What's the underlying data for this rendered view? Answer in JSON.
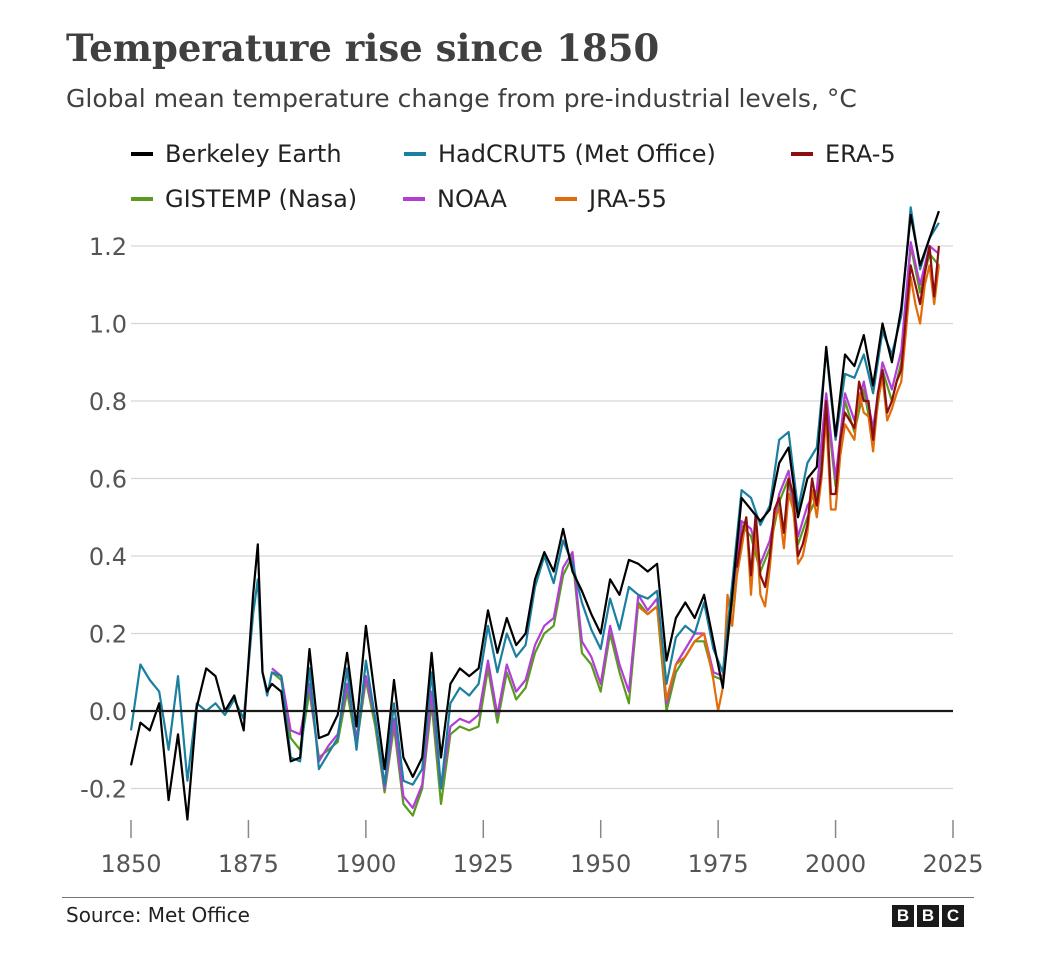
{
  "title": "Temperature rise since 1850",
  "subtitle": "Global mean temperature change from pre-industrial levels, °C",
  "source": "Source: Met Office",
  "logo": [
    "B",
    "B",
    "C"
  ],
  "chart_data": {
    "type": "line",
    "title": "Temperature rise since 1850",
    "subtitle": "Global mean temperature change from pre-industrial levels, °C",
    "xlabel": "",
    "ylabel": "",
    "xlim": [
      1850,
      2025
    ],
    "ylim": [
      -0.3,
      1.3
    ],
    "xticks": [
      1850,
      1875,
      1900,
      1925,
      1950,
      1975,
      2000,
      2025
    ],
    "xtick_labels": [
      "1850",
      "1875",
      "1900",
      "1925",
      "1950",
      "1975",
      "2000",
      "2025"
    ],
    "yticks": [
      -0.2,
      0.0,
      0.2,
      0.4,
      0.6,
      0.8,
      1.0,
      1.2
    ],
    "ytick_labels": [
      "-0.2",
      "0.0",
      "0.2",
      "0.4",
      "0.6",
      "0.8",
      "1.0",
      "1.2"
    ],
    "grid": true,
    "legend_position": "top",
    "series": [
      {
        "name": "Berkeley Earth",
        "color": "#000000",
        "x": [
          1850,
          1852,
          1854,
          1856,
          1858,
          1860,
          1862,
          1864,
          1866,
          1868,
          1870,
          1872,
          1874,
          1876,
          1877,
          1878,
          1879,
          1880,
          1882,
          1884,
          1886,
          1888,
          1890,
          1892,
          1894,
          1896,
          1898,
          1900,
          1902,
          1904,
          1906,
          1908,
          1910,
          1912,
          1914,
          1916,
          1918,
          1920,
          1922,
          1924,
          1926,
          1928,
          1930,
          1932,
          1934,
          1936,
          1938,
          1940,
          1942,
          1944,
          1946,
          1948,
          1950,
          1952,
          1954,
          1956,
          1958,
          1960,
          1962,
          1964,
          1966,
          1968,
          1970,
          1972,
          1974,
          1976,
          1978,
          1980,
          1982,
          1984,
          1986,
          1988,
          1990,
          1992,
          1994,
          1996,
          1998,
          2000,
          2002,
          2004,
          2006,
          2008,
          2010,
          2012,
          2014,
          2016,
          2018,
          2020,
          2022
        ],
        "values": [
          -0.14,
          -0.03,
          -0.05,
          0.02,
          -0.23,
          -0.06,
          -0.28,
          0.01,
          0.11,
          0.09,
          0.0,
          0.04,
          -0.05,
          0.3,
          0.43,
          0.1,
          0.05,
          0.07,
          0.05,
          -0.13,
          -0.12,
          0.16,
          -0.07,
          -0.06,
          -0.01,
          0.15,
          -0.04,
          0.22,
          0.03,
          -0.15,
          0.08,
          -0.12,
          -0.17,
          -0.12,
          0.15,
          -0.12,
          0.07,
          0.11,
          0.09,
          0.11,
          0.26,
          0.15,
          0.24,
          0.17,
          0.2,
          0.34,
          0.41,
          0.36,
          0.47,
          0.36,
          0.31,
          0.25,
          0.2,
          0.34,
          0.3,
          0.39,
          0.38,
          0.36,
          0.38,
          0.13,
          0.24,
          0.28,
          0.24,
          0.3,
          0.18,
          0.06,
          0.3,
          0.55,
          0.52,
          0.49,
          0.52,
          0.64,
          0.68,
          0.5,
          0.6,
          0.63,
          0.94,
          0.71,
          0.92,
          0.89,
          0.97,
          0.84,
          1.0,
          0.9,
          1.04,
          1.28,
          1.15,
          1.22,
          1.29
        ]
      },
      {
        "name": "HadCRUT5 (Met Office)",
        "color": "#1b7fa0",
        "x": [
          1850,
          1852,
          1854,
          1856,
          1858,
          1860,
          1862,
          1864,
          1866,
          1868,
          1870,
          1872,
          1874,
          1876,
          1877,
          1878,
          1879,
          1880,
          1882,
          1884,
          1886,
          1888,
          1890,
          1892,
          1894,
          1896,
          1898,
          1900,
          1902,
          1904,
          1906,
          1908,
          1910,
          1912,
          1914,
          1916,
          1918,
          1920,
          1922,
          1924,
          1926,
          1928,
          1930,
          1932,
          1934,
          1936,
          1938,
          1940,
          1942,
          1944,
          1946,
          1948,
          1950,
          1952,
          1954,
          1956,
          1958,
          1960,
          1962,
          1964,
          1966,
          1968,
          1970,
          1972,
          1974,
          1976,
          1978,
          1980,
          1982,
          1984,
          1986,
          1988,
          1990,
          1992,
          1994,
          1996,
          1998,
          2000,
          2002,
          2004,
          2006,
          2008,
          2010,
          2012,
          2014,
          2016,
          2018,
          2020,
          2022
        ],
        "values": [
          -0.05,
          0.12,
          0.08,
          0.05,
          -0.1,
          0.09,
          -0.18,
          0.02,
          0.0,
          0.02,
          -0.01,
          0.03,
          -0.02,
          0.25,
          0.34,
          0.1,
          0.04,
          0.1,
          0.09,
          -0.12,
          -0.13,
          0.11,
          -0.15,
          -0.11,
          -0.07,
          0.11,
          -0.1,
          0.13,
          -0.02,
          -0.19,
          0.02,
          -0.18,
          -0.19,
          -0.15,
          0.1,
          -0.2,
          0.02,
          0.06,
          0.04,
          0.07,
          0.22,
          0.1,
          0.2,
          0.14,
          0.17,
          0.32,
          0.4,
          0.33,
          0.44,
          0.38,
          0.28,
          0.21,
          0.16,
          0.29,
          0.21,
          0.32,
          0.3,
          0.29,
          0.31,
          0.07,
          0.19,
          0.22,
          0.2,
          0.28,
          0.16,
          0.1,
          0.33,
          0.57,
          0.55,
          0.48,
          0.53,
          0.7,
          0.72,
          0.52,
          0.64,
          0.68,
          0.93,
          0.7,
          0.87,
          0.86,
          0.92,
          0.82,
          0.98,
          0.92,
          1.02,
          1.3,
          1.14,
          1.22,
          1.26
        ]
      },
      {
        "name": "ERA-5",
        "color": "#8b0f0f",
        "x": [
          1979,
          1980,
          1981,
          1982,
          1983,
          1984,
          1985,
          1986,
          1987,
          1988,
          1989,
          1990,
          1991,
          1992,
          1993,
          1994,
          1995,
          1996,
          1997,
          1998,
          1999,
          2000,
          2001,
          2002,
          2003,
          2004,
          2005,
          2006,
          2007,
          2008,
          2009,
          2010,
          2011,
          2012,
          2013,
          2014,
          2015,
          2016,
          2017,
          2018,
          2019,
          2020,
          2021,
          2022
        ],
        "values": [
          0.37,
          0.45,
          0.5,
          0.35,
          0.51,
          0.35,
          0.32,
          0.4,
          0.52,
          0.55,
          0.46,
          0.6,
          0.56,
          0.4,
          0.43,
          0.48,
          0.6,
          0.53,
          0.62,
          0.8,
          0.56,
          0.56,
          0.7,
          0.77,
          0.75,
          0.73,
          0.85,
          0.8,
          0.8,
          0.7,
          0.82,
          0.88,
          0.77,
          0.8,
          0.85,
          0.88,
          1.02,
          1.15,
          1.1,
          1.05,
          1.13,
          1.2,
          1.07,
          1.2
        ]
      },
      {
        "name": "GISTEMP (Nasa)",
        "color": "#5a9a1e",
        "x": [
          1880,
          1882,
          1884,
          1886,
          1888,
          1890,
          1892,
          1894,
          1896,
          1898,
          1900,
          1902,
          1904,
          1906,
          1908,
          1910,
          1912,
          1914,
          1916,
          1918,
          1920,
          1922,
          1924,
          1926,
          1928,
          1930,
          1932,
          1934,
          1936,
          1938,
          1940,
          1942,
          1944,
          1946,
          1948,
          1950,
          1952,
          1954,
          1956,
          1958,
          1960,
          1962,
          1964,
          1966,
          1968,
          1970,
          1972,
          1974,
          1976,
          1978,
          1980,
          1982,
          1984,
          1986,
          1988,
          1990,
          1992,
          1994,
          1996,
          1998,
          2000,
          2002,
          2004,
          2006,
          2008,
          2010,
          2012,
          2014,
          2016,
          2018,
          2020,
          2022
        ],
        "values": [
          0.1,
          0.08,
          -0.07,
          -0.1,
          0.05,
          -0.12,
          -0.1,
          -0.08,
          0.05,
          -0.09,
          0.08,
          -0.04,
          -0.21,
          -0.04,
          -0.24,
          -0.27,
          -0.2,
          0.02,
          -0.24,
          -0.06,
          -0.04,
          -0.05,
          -0.04,
          0.11,
          -0.03,
          0.1,
          0.03,
          0.06,
          0.15,
          0.2,
          0.22,
          0.35,
          0.4,
          0.15,
          0.12,
          0.05,
          0.2,
          0.1,
          0.02,
          0.28,
          0.25,
          0.27,
          0.0,
          0.1,
          0.14,
          0.18,
          0.18,
          0.09,
          0.08,
          0.28,
          0.48,
          0.45,
          0.36,
          0.42,
          0.54,
          0.6,
          0.43,
          0.5,
          0.55,
          0.8,
          0.58,
          0.8,
          0.72,
          0.83,
          0.7,
          0.88,
          0.8,
          0.9,
          1.2,
          1.08,
          1.18,
          1.15
        ]
      },
      {
        "name": "NOAA",
        "color": "#b23ed6",
        "x": [
          1880,
          1882,
          1884,
          1886,
          1888,
          1890,
          1892,
          1894,
          1896,
          1898,
          1900,
          1902,
          1904,
          1906,
          1908,
          1910,
          1912,
          1914,
          1916,
          1918,
          1920,
          1922,
          1924,
          1926,
          1928,
          1930,
          1932,
          1934,
          1936,
          1938,
          1940,
          1942,
          1944,
          1946,
          1948,
          1950,
          1952,
          1954,
          1956,
          1958,
          1960,
          1962,
          1964,
          1966,
          1968,
          1970,
          1972,
          1974,
          1976,
          1978,
          1980,
          1982,
          1984,
          1986,
          1988,
          1990,
          1992,
          1994,
          1996,
          1998,
          2000,
          2002,
          2004,
          2006,
          2008,
          2010,
          2012,
          2014,
          2016,
          2018,
          2020,
          2022
        ],
        "values": [
          0.11,
          0.09,
          -0.05,
          -0.06,
          0.07,
          -0.13,
          -0.09,
          -0.06,
          0.07,
          -0.07,
          0.09,
          -0.02,
          -0.2,
          -0.02,
          -0.22,
          -0.25,
          -0.19,
          0.05,
          -0.2,
          -0.04,
          -0.02,
          -0.03,
          -0.01,
          0.13,
          -0.01,
          0.12,
          0.05,
          0.08,
          0.17,
          0.22,
          0.24,
          0.37,
          0.41,
          0.18,
          0.14,
          0.07,
          0.22,
          0.12,
          0.05,
          0.3,
          0.26,
          0.29,
          0.02,
          0.12,
          0.16,
          0.2,
          0.2,
          0.1,
          0.09,
          0.3,
          0.49,
          0.47,
          0.38,
          0.44,
          0.56,
          0.62,
          0.45,
          0.53,
          0.57,
          0.82,
          0.6,
          0.82,
          0.75,
          0.85,
          0.73,
          0.9,
          0.83,
          0.93,
          1.21,
          1.1,
          1.2,
          1.18
        ]
      },
      {
        "name": "JRA-55",
        "color": "#e36c0a",
        "x": [
          1958,
          1960,
          1962,
          1964,
          1966,
          1968,
          1970,
          1972,
          1974,
          1975,
          1976,
          1977,
          1978,
          1979,
          1980,
          1981,
          1982,
          1983,
          1984,
          1985,
          1986,
          1987,
          1988,
          1989,
          1990,
          1991,
          1992,
          1993,
          1994,
          1995,
          1996,
          1997,
          1998,
          1999,
          2000,
          2001,
          2002,
          2003,
          2004,
          2005,
          2006,
          2007,
          2008,
          2009,
          2010,
          2011,
          2012,
          2013,
          2014,
          2015,
          2016,
          2017,
          2018,
          2019,
          2020,
          2021,
          2022
        ],
        "values": [
          0.27,
          0.25,
          0.27,
          0.03,
          0.12,
          0.14,
          0.18,
          0.2,
          0.08,
          0.0,
          0.06,
          0.3,
          0.22,
          0.35,
          0.42,
          0.5,
          0.3,
          0.48,
          0.3,
          0.27,
          0.37,
          0.5,
          0.52,
          0.42,
          0.56,
          0.52,
          0.38,
          0.4,
          0.46,
          0.57,
          0.5,
          0.6,
          0.76,
          0.52,
          0.52,
          0.66,
          0.74,
          0.72,
          0.7,
          0.82,
          0.77,
          0.76,
          0.67,
          0.8,
          0.86,
          0.75,
          0.78,
          0.82,
          0.85,
          0.98,
          1.12,
          1.05,
          1.0,
          1.1,
          1.15,
          1.05,
          1.15
        ]
      }
    ]
  }
}
